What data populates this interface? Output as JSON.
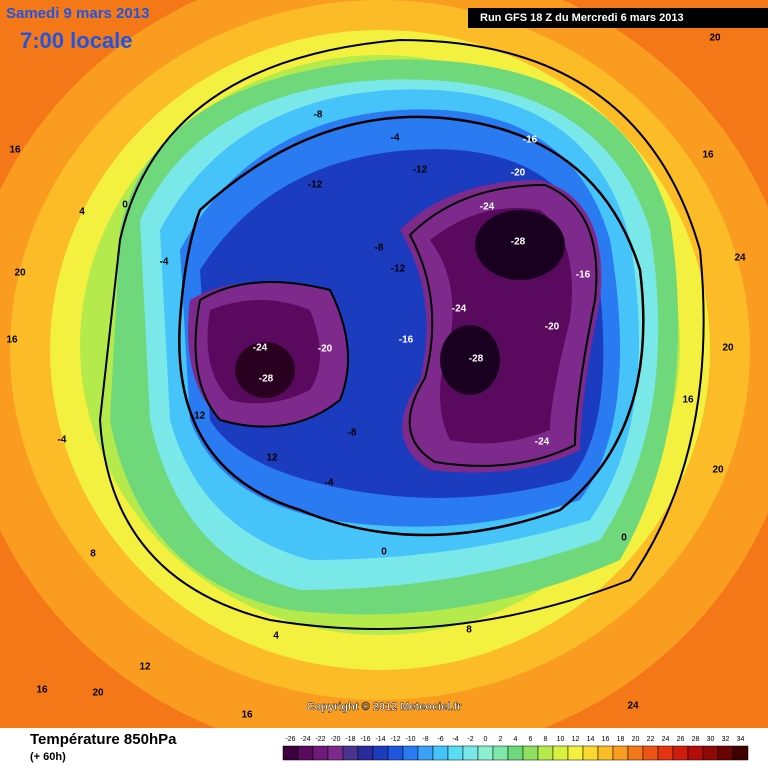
{
  "header": {
    "date": "Samedi 9 mars 2013",
    "time": "7:00 locale",
    "run": "Run GFS 18 Z du Mercredi 6 mars 2013"
  },
  "copyright": "Copyright © 2012 Meteociel.fr",
  "legend": {
    "title": "Température 850hPa",
    "subtitle": "(+ 60h)",
    "ticks": [
      -26,
      -24,
      -22,
      -20,
      -18,
      -16,
      -14,
      -12,
      -10,
      -8,
      -6,
      -4,
      -2,
      0,
      2,
      4,
      6,
      8,
      10,
      12,
      14,
      16,
      18,
      20,
      22,
      24,
      26,
      28,
      30,
      32,
      34
    ],
    "colors": [
      "#3a0040",
      "#5a0a5e",
      "#6e1a78",
      "#7e2a8c",
      "#4a3290",
      "#2a2a9a",
      "#1c3cc0",
      "#1e56e0",
      "#2a7af2",
      "#3aa0f8",
      "#46c4fa",
      "#5adcf4",
      "#7ae8e8",
      "#8cf0d0",
      "#7ee8a8",
      "#6ed87a",
      "#8ee060",
      "#b4ea4c",
      "#d8f040",
      "#f4f040",
      "#fad830",
      "#fcbc28",
      "#fa9c20",
      "#f47818",
      "#ee5414",
      "#e43410",
      "#d01c0c",
      "#b40c0a",
      "#900808",
      "#6a0404",
      "#400000"
    ]
  },
  "contour_labels": [
    "16",
    "20",
    "16",
    "-4",
    "12",
    "16",
    "20",
    "16",
    "24",
    "20",
    "16",
    "24",
    "20",
    "16",
    "20",
    "-24",
    "-28",
    "-20",
    "-12",
    "-8",
    "-16",
    "-24",
    "-28",
    "-24",
    "-20",
    "-16",
    "-28",
    "-24",
    "-20",
    "-16",
    "-12",
    "-8",
    "-12",
    "-4",
    "0",
    "4",
    "-4",
    "0",
    "4",
    "8",
    "12",
    "0",
    "-4",
    "8",
    "-8",
    "-12"
  ]
}
